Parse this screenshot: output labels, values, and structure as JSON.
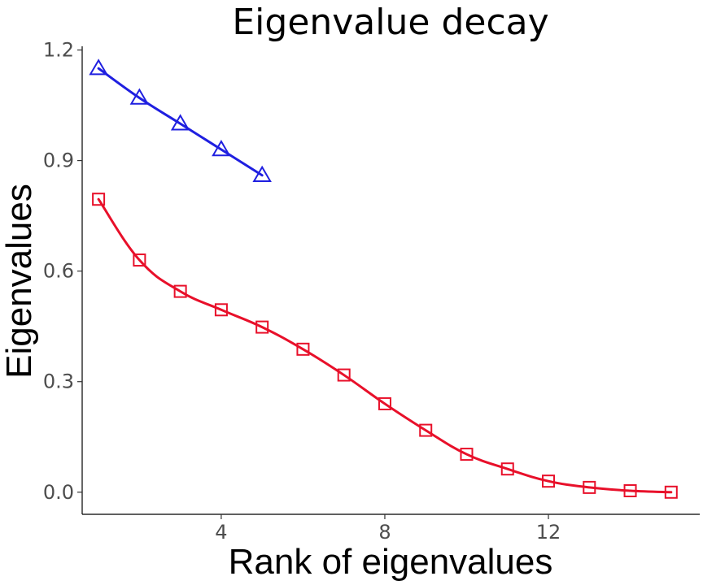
{
  "chart_data": {
    "type": "line",
    "title": "Eigenvalue decay",
    "xlabel": "Rank of eigenvalues",
    "ylabel": "Eigenvalues",
    "xlim": [
      0.6,
      15.7
    ],
    "ylim": [
      -0.06,
      1.21
    ],
    "xticks": [
      4,
      8,
      12
    ],
    "yticks": [
      0.0,
      0.3,
      0.6,
      0.9,
      1.2
    ],
    "ytick_labels": [
      "0.0",
      "0.3",
      "0.6",
      "0.9",
      "1.2"
    ],
    "grid": false,
    "series": [
      {
        "color": "#1f1fe0",
        "marker": "triangle-open",
        "x": [
          1,
          2,
          3,
          4,
          5
        ],
        "y": [
          1.15,
          1.07,
          1.0,
          0.93,
          0.86
        ]
      },
      {
        "color": "#e8102a",
        "marker": "square-open",
        "x": [
          1,
          2,
          3,
          4,
          5,
          6,
          7,
          8,
          9,
          10,
          11,
          12,
          13,
          14,
          15
        ],
        "y": [
          0.795,
          0.63,
          0.545,
          0.495,
          0.448,
          0.388,
          0.318,
          0.24,
          0.168,
          0.103,
          0.063,
          0.03,
          0.013,
          0.004,
          0.0
        ]
      }
    ]
  }
}
